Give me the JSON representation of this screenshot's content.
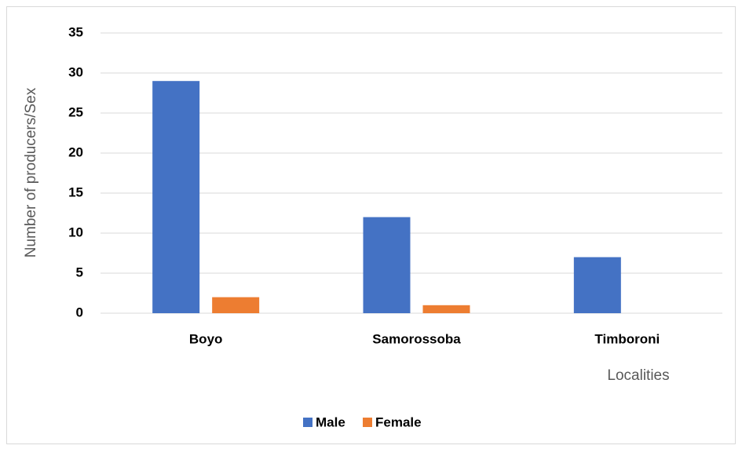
{
  "chart_data": {
    "type": "bar",
    "categories": [
      "Boyo",
      "Samorossoba",
      "Timboroni"
    ],
    "series": [
      {
        "name": "Male",
        "color": "#4472c4",
        "values": [
          29,
          12,
          7
        ]
      },
      {
        "name": "Female",
        "color": "#ed7d31",
        "values": [
          2,
          1,
          0
        ]
      }
    ],
    "ylabel": "Number of producers/Sex",
    "xlabel": "Localities",
    "ylim": [
      0,
      35
    ],
    "yticks": [
      0,
      5,
      10,
      15,
      20,
      25,
      30,
      35
    ],
    "grid": true,
    "legend": "bottom"
  }
}
